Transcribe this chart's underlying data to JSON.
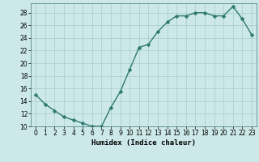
{
  "x": [
    0,
    1,
    2,
    3,
    4,
    5,
    6,
    7,
    8,
    9,
    10,
    11,
    12,
    13,
    14,
    15,
    16,
    17,
    18,
    19,
    20,
    21,
    22,
    23
  ],
  "y": [
    15,
    13.5,
    12.5,
    11.5,
    11,
    10.5,
    10,
    10,
    13,
    15.5,
    19,
    22.5,
    23,
    25,
    26.5,
    27.5,
    27.5,
    28,
    28,
    27.5,
    27.5,
    29,
    27,
    24.5
  ],
  "line_color": "#2d7a6e",
  "marker_color": "#2d7a6e",
  "bg_color": "#cce8e8",
  "grid_color": "#aacccc",
  "xlabel": "Humidex (Indice chaleur)",
  "xlim": [
    -0.5,
    23.5
  ],
  "ylim": [
    10,
    29.5
  ],
  "yticks": [
    10,
    12,
    14,
    16,
    18,
    20,
    22,
    24,
    26,
    28
  ],
  "xticks": [
    0,
    1,
    2,
    3,
    4,
    5,
    6,
    7,
    8,
    9,
    10,
    11,
    12,
    13,
    14,
    15,
    16,
    17,
    18,
    19,
    20,
    21,
    22,
    23
  ],
  "xlabel_fontsize": 6.5,
  "tick_fontsize": 5.5,
  "line_width": 1.0,
  "marker_size": 2.5
}
